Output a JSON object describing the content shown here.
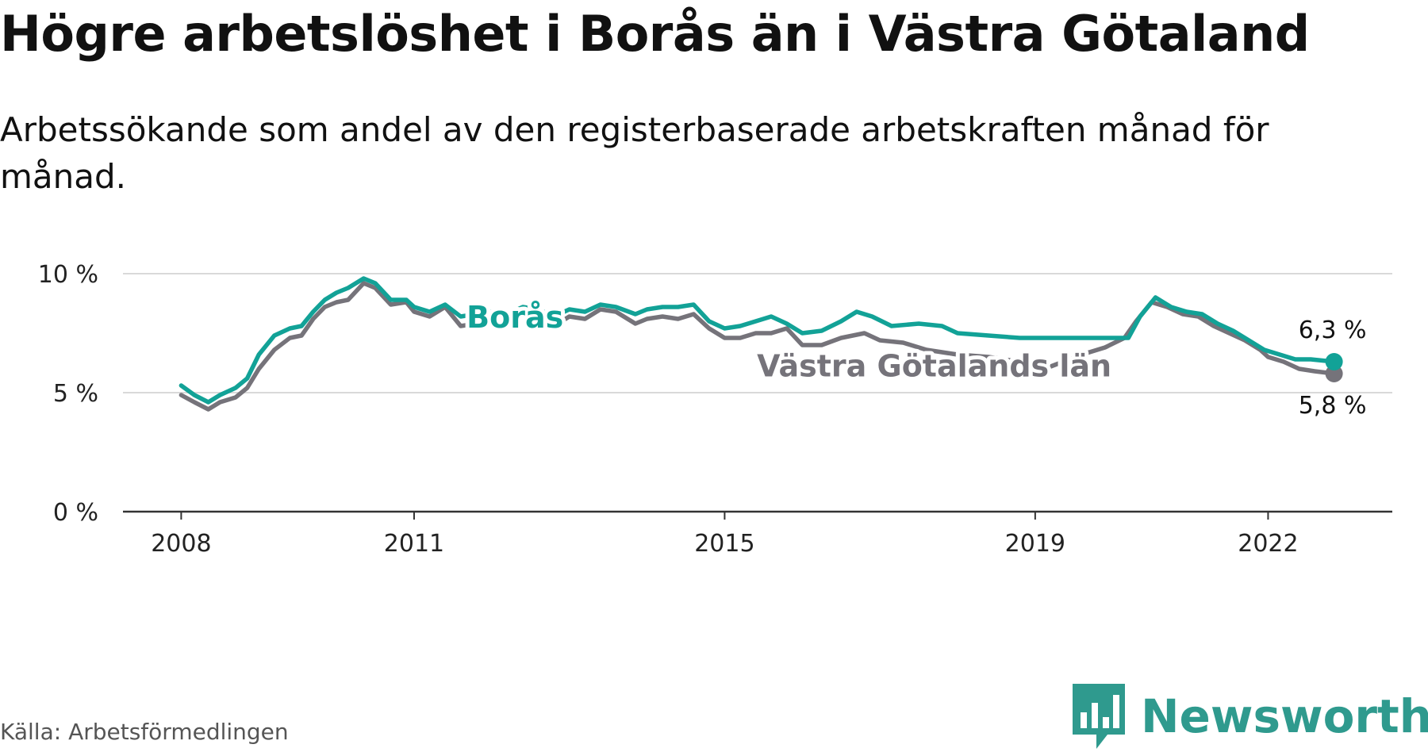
{
  "header": {
    "title": "Högre arbetslöshet i Borås än i Västra Götaland",
    "subtitle": "Arbetssökande som andel av den registerbaserade arbetskraften månad för månad."
  },
  "footer": {
    "source": "Källa: Arbetsförmedlingen",
    "brand": "Newsworthy"
  },
  "colors": {
    "boras": "#12a297",
    "vastra": "#75737a",
    "brand": "#2f9a8e",
    "grid": "#d9d9d9",
    "axis": "#333333"
  },
  "chart_data": {
    "type": "line",
    "title": "Högre arbetslöshet i Borås än i Västra Götaland",
    "xlabel": "",
    "ylabel": "",
    "x_range": [
      2007.25,
      2023.6
    ],
    "ylim": [
      0,
      10
    ],
    "y_ticks": [
      {
        "value": 0,
        "label": "0 %"
      },
      {
        "value": 5,
        "label": "5 %"
      },
      {
        "value": 10,
        "label": "10 %"
      }
    ],
    "x_ticks": [
      {
        "value": 2008,
        "label": "2008"
      },
      {
        "value": 2011,
        "label": "2011"
      },
      {
        "value": 2015,
        "label": "2015"
      },
      {
        "value": 2019,
        "label": "2019"
      },
      {
        "value": 2022,
        "label": "2022"
      }
    ],
    "grid": true,
    "series": [
      {
        "name": "Västra Götalands län",
        "label": "Västra Götalands län",
        "end_label": "5,8 %",
        "points": [
          [
            2008.0,
            4.9
          ],
          [
            2008.17,
            4.6
          ],
          [
            2008.35,
            4.3
          ],
          [
            2008.5,
            4.6
          ],
          [
            2008.7,
            4.8
          ],
          [
            2008.85,
            5.2
          ],
          [
            2009.0,
            6.0
          ],
          [
            2009.2,
            6.8
          ],
          [
            2009.4,
            7.3
          ],
          [
            2009.55,
            7.4
          ],
          [
            2009.7,
            8.1
          ],
          [
            2009.85,
            8.6
          ],
          [
            2010.0,
            8.8
          ],
          [
            2010.15,
            8.9
          ],
          [
            2010.35,
            9.6
          ],
          [
            2010.5,
            9.4
          ],
          [
            2010.7,
            8.7
          ],
          [
            2010.9,
            8.8
          ],
          [
            2011.0,
            8.4
          ],
          [
            2011.2,
            8.2
          ],
          [
            2011.4,
            8.6
          ],
          [
            2011.6,
            7.8
          ],
          [
            2011.8,
            7.9
          ],
          [
            2012.0,
            8.2
          ],
          [
            2012.2,
            8.0
          ],
          [
            2012.4,
            8.5
          ],
          [
            2012.6,
            8.3
          ],
          [
            2012.8,
            7.8
          ],
          [
            2013.0,
            8.2
          ],
          [
            2013.2,
            8.1
          ],
          [
            2013.4,
            8.5
          ],
          [
            2013.6,
            8.4
          ],
          [
            2013.85,
            7.9
          ],
          [
            2014.0,
            8.1
          ],
          [
            2014.2,
            8.2
          ],
          [
            2014.4,
            8.1
          ],
          [
            2014.6,
            8.3
          ],
          [
            2014.8,
            7.7
          ],
          [
            2015.0,
            7.3
          ],
          [
            2015.2,
            7.3
          ],
          [
            2015.4,
            7.5
          ],
          [
            2015.6,
            7.5
          ],
          [
            2015.8,
            7.7
          ],
          [
            2016.0,
            7.0
          ],
          [
            2016.25,
            7.0
          ],
          [
            2016.5,
            7.3
          ],
          [
            2016.8,
            7.5
          ],
          [
            2017.0,
            7.2
          ],
          [
            2017.3,
            7.1
          ],
          [
            2017.6,
            6.8
          ],
          [
            2018.0,
            6.6
          ],
          [
            2018.4,
            6.5
          ],
          [
            2018.8,
            6.3
          ],
          [
            2019.2,
            6.1
          ],
          [
            2019.6,
            6.6
          ],
          [
            2019.9,
            6.9
          ],
          [
            2020.15,
            7.3
          ],
          [
            2020.3,
            8.0
          ],
          [
            2020.5,
            8.8
          ],
          [
            2020.7,
            8.6
          ],
          [
            2020.9,
            8.3
          ],
          [
            2021.1,
            8.2
          ],
          [
            2021.3,
            7.8
          ],
          [
            2021.5,
            7.5
          ],
          [
            2021.7,
            7.2
          ],
          [
            2021.9,
            6.8
          ],
          [
            2022.0,
            6.5
          ],
          [
            2022.2,
            6.3
          ],
          [
            2022.4,
            6.0
          ],
          [
            2022.6,
            5.9
          ],
          [
            2022.85,
            5.8
          ]
        ]
      },
      {
        "name": "Borås",
        "label": "Borås",
        "end_label": "6,3 %",
        "points": [
          [
            2008.0,
            5.3
          ],
          [
            2008.17,
            4.9
          ],
          [
            2008.35,
            4.6
          ],
          [
            2008.5,
            4.9
          ],
          [
            2008.7,
            5.2
          ],
          [
            2008.85,
            5.6
          ],
          [
            2009.0,
            6.6
          ],
          [
            2009.2,
            7.4
          ],
          [
            2009.4,
            7.7
          ],
          [
            2009.55,
            7.8
          ],
          [
            2009.7,
            8.4
          ],
          [
            2009.85,
            8.9
          ],
          [
            2010.0,
            9.2
          ],
          [
            2010.15,
            9.4
          ],
          [
            2010.35,
            9.8
          ],
          [
            2010.5,
            9.6
          ],
          [
            2010.7,
            8.9
          ],
          [
            2010.9,
            8.9
          ],
          [
            2011.0,
            8.6
          ],
          [
            2011.2,
            8.4
          ],
          [
            2011.4,
            8.7
          ],
          [
            2011.6,
            8.2
          ],
          [
            2011.8,
            8.3
          ],
          [
            2012.0,
            8.4
          ],
          [
            2012.2,
            8.3
          ],
          [
            2012.4,
            8.6
          ],
          [
            2012.6,
            8.5
          ],
          [
            2012.8,
            8.2
          ],
          [
            2013.0,
            8.5
          ],
          [
            2013.2,
            8.4
          ],
          [
            2013.4,
            8.7
          ],
          [
            2013.6,
            8.6
          ],
          [
            2013.85,
            8.3
          ],
          [
            2014.0,
            8.5
          ],
          [
            2014.2,
            8.6
          ],
          [
            2014.4,
            8.6
          ],
          [
            2014.6,
            8.7
          ],
          [
            2014.8,
            8.0
          ],
          [
            2015.0,
            7.7
          ],
          [
            2015.2,
            7.8
          ],
          [
            2015.4,
            8.0
          ],
          [
            2015.6,
            8.2
          ],
          [
            2015.8,
            7.9
          ],
          [
            2016.0,
            7.5
          ],
          [
            2016.25,
            7.6
          ],
          [
            2016.5,
            8.0
          ],
          [
            2016.7,
            8.4
          ],
          [
            2016.9,
            8.2
          ],
          [
            2017.15,
            7.8
          ],
          [
            2017.5,
            7.9
          ],
          [
            2017.8,
            7.8
          ],
          [
            2018.0,
            7.5
          ],
          [
            2018.4,
            7.4
          ],
          [
            2018.8,
            7.3
          ],
          [
            2019.2,
            7.3
          ],
          [
            2019.6,
            7.3
          ],
          [
            2020.0,
            7.3
          ],
          [
            2020.2,
            7.3
          ],
          [
            2020.35,
            8.2
          ],
          [
            2020.55,
            9.0
          ],
          [
            2020.75,
            8.6
          ],
          [
            2020.95,
            8.4
          ],
          [
            2021.15,
            8.3
          ],
          [
            2021.35,
            7.9
          ],
          [
            2021.55,
            7.6
          ],
          [
            2021.75,
            7.2
          ],
          [
            2021.95,
            6.8
          ],
          [
            2022.15,
            6.6
          ],
          [
            2022.35,
            6.4
          ],
          [
            2022.55,
            6.4
          ],
          [
            2022.85,
            6.3
          ]
        ]
      }
    ]
  }
}
